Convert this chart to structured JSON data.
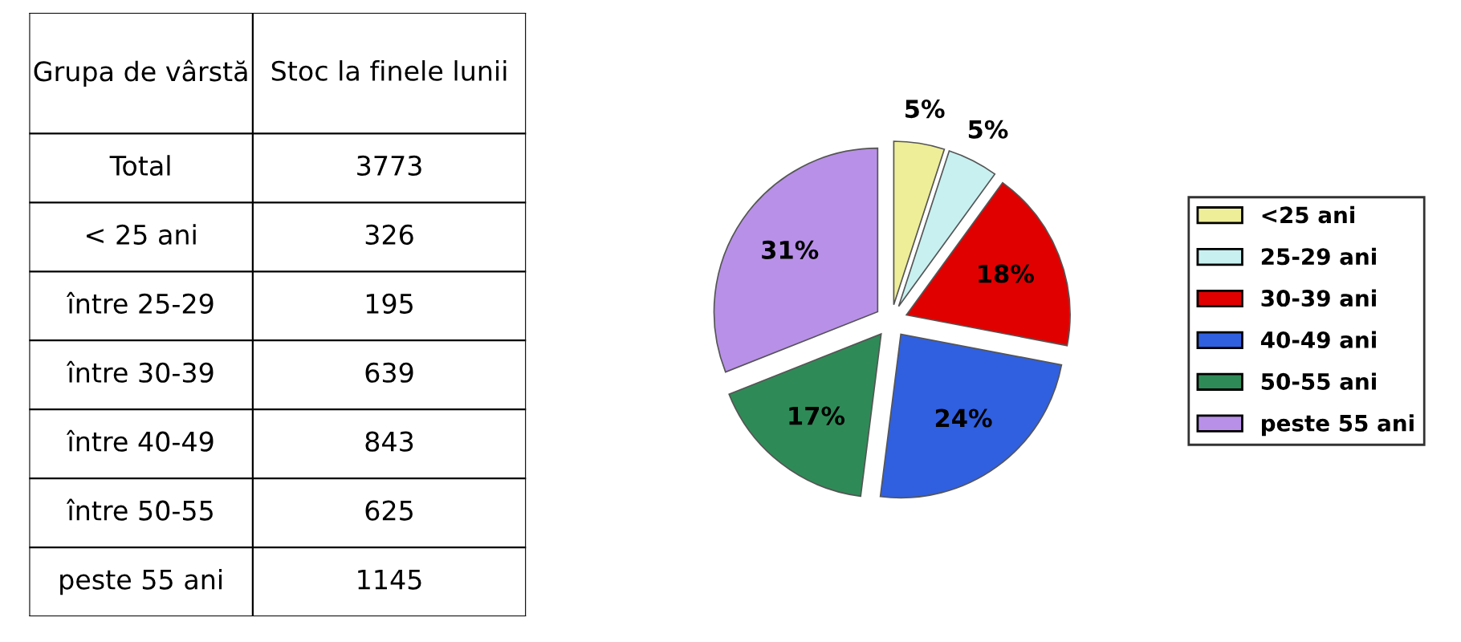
{
  "chart_data": {
    "type": "pie",
    "categories": [
      "<25 ani",
      "25-29 ani",
      "30-39 ani",
      "40-49 ani",
      "50-55 ani",
      "peste 55 ani"
    ],
    "values": [
      5,
      5,
      18,
      24,
      17,
      31
    ],
    "value_labels": [
      "5%",
      "5%",
      "18%",
      "24%",
      "17%",
      "31%"
    ],
    "colors": [
      "#eeee99",
      "#c8f0f0",
      "#e00000",
      "#3060e0",
      "#2e8b57",
      "#b890e8"
    ],
    "legend": "right",
    "annotations": [
      "Grupa de vârstă",
      "Stoc la finele lunii",
      "Total",
      "3773",
      "< 25 ani",
      "326",
      "între 25-29",
      "195",
      "între 30-39",
      "639",
      "între 40-49",
      "843",
      "între 50-55",
      "625",
      "peste 55 ani",
      "1145"
    ]
  }
}
